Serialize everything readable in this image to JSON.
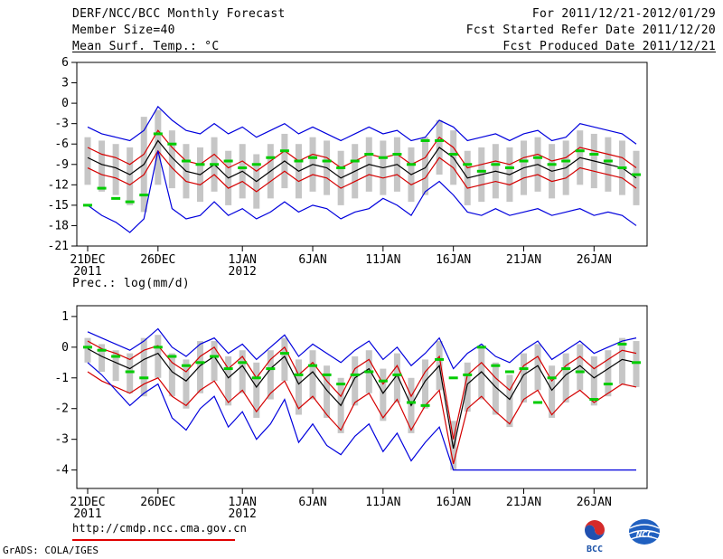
{
  "header": {
    "title": "DERF/NCC/BCC Monthly Forecast",
    "member_size": "Member Size=40",
    "forecast_range": "For 2011/12/21-2012/01/29",
    "refer_date": "Fcst Started Refer Date 2011/12/20",
    "produced_date": "Fcst Produced Date 2011/12/21"
  },
  "footer": {
    "url": "http://cmdp.ncc.cma.gov.cn",
    "grads_credit": "GrADS: COLA/IGES",
    "logo_bcc": "BCC",
    "logo_ncc": "NCC"
  },
  "colors": {
    "line_blue": "#0000dd",
    "line_red": "#d40000",
    "line_black": "#000000",
    "obs_green": "#00cc00",
    "spread_gray": "#c6c6c6",
    "underline_red": "#e00000"
  },
  "chart_data": [
    {
      "type": "line",
      "title": "Mean Surf. Temp.: °C",
      "ylim": [
        -21,
        6
      ],
      "yticks": [
        6,
        3,
        0,
        -3,
        -6,
        -9,
        -12,
        -15,
        -18,
        -21
      ],
      "n_days": 40,
      "bar_color": "#c6c6c6",
      "xticks": [
        {
          "day": 0,
          "label": "21DEC",
          "sub": "2011"
        },
        {
          "day": 5,
          "label": "26DEC",
          "sub": ""
        },
        {
          "day": 11,
          "label": "1JAN",
          "sub": "2012"
        },
        {
          "day": 16,
          "label": "6JAN",
          "sub": ""
        },
        {
          "day": 21,
          "label": "11JAN",
          "sub": ""
        },
        {
          "day": 26,
          "label": "16JAN",
          "sub": ""
        },
        {
          "day": 31,
          "label": "21JAN",
          "sub": ""
        },
        {
          "day": 36,
          "label": "26JAN",
          "sub": ""
        }
      ],
      "series": [
        {
          "name": "ensemble-max",
          "color": "#0000dd",
          "style": "solid",
          "values": [
            -3.5,
            -4.5,
            -5,
            -5.5,
            -4,
            -0.5,
            -2.5,
            -4,
            -4.5,
            -3,
            -4.5,
            -3.5,
            -5,
            -4,
            -3,
            -4.5,
            -3.5,
            -4.5,
            -5.5,
            -4.5,
            -3.5,
            -4.5,
            -4,
            -5.5,
            -5,
            -2.5,
            -3.5,
            -5.5,
            -5,
            -4.5,
            -5.5,
            -4.5,
            -4,
            -5.5,
            -5,
            -3,
            -3.5,
            -4,
            -4.5,
            -6
          ]
        },
        {
          "name": "red-upper",
          "color": "#d40000",
          "style": "solid",
          "values": [
            -6.5,
            -7.5,
            -8,
            -9,
            -7.5,
            -4,
            -6.5,
            -8.5,
            -9,
            -7.5,
            -9.5,
            -8.5,
            -10,
            -8.5,
            -7,
            -8.5,
            -7.5,
            -8,
            -9.5,
            -8.5,
            -7.5,
            -8,
            -7.5,
            -9,
            -8,
            -5,
            -6.5,
            -9.5,
            -9,
            -8.5,
            -9,
            -8,
            -7.5,
            -8.5,
            -8,
            -6.5,
            -7,
            -7.5,
            -8,
            -9.5
          ]
        },
        {
          "name": "ensemble-mean",
          "color": "#000000",
          "style": "solid",
          "values": [
            -8,
            -9,
            -9.5,
            -10.5,
            -9,
            -5.5,
            -8,
            -10,
            -10.5,
            -9,
            -11,
            -10,
            -11.5,
            -10,
            -8.5,
            -10,
            -9,
            -9.5,
            -11,
            -10,
            -9,
            -9.5,
            -9,
            -10.5,
            -9.5,
            -6.5,
            -8,
            -11,
            -10.5,
            -10,
            -10.5,
            -9.5,
            -9,
            -10,
            -9.5,
            -8,
            -8.5,
            -9,
            -9.5,
            -11
          ]
        },
        {
          "name": "red-lower",
          "color": "#d40000",
          "style": "solid",
          "values": [
            -9.5,
            -10.5,
            -11,
            -12,
            -10.5,
            -7,
            -9.5,
            -11.5,
            -12,
            -10.5,
            -12.5,
            -11.5,
            -13,
            -11.5,
            -10,
            -11.5,
            -10.5,
            -11,
            -12.5,
            -11.5,
            -10.5,
            -11,
            -10.5,
            -12,
            -11,
            -8,
            -9.5,
            -12.5,
            -12,
            -11.5,
            -12,
            -11,
            -10.5,
            -11.5,
            -11,
            -9.5,
            -10,
            -10.5,
            -11,
            -12.5
          ]
        },
        {
          "name": "ensemble-min",
          "color": "#0000dd",
          "style": "solid",
          "values": [
            -15,
            -16.5,
            -17.5,
            -19,
            -17,
            -7,
            -15.5,
            -17,
            -16.5,
            -14.5,
            -16.5,
            -15.5,
            -17,
            -16,
            -14.5,
            -16,
            -15,
            -15.5,
            -17,
            -16,
            -15.5,
            -14,
            -15,
            -16.5,
            -13,
            -11.5,
            -13.5,
            -16,
            -16.5,
            -15.5,
            -16.5,
            -16,
            -15.5,
            -16.5,
            -16,
            -15.5,
            -16.5,
            -16,
            -16.5,
            -18
          ]
        },
        {
          "name": "observation-dashes",
          "color": "#00cc00",
          "style": "dash",
          "values": [
            -15,
            -12.5,
            -14,
            -14.5,
            -13.5,
            -4.5,
            -6,
            -8.5,
            -9,
            -9,
            -8.5,
            -9.5,
            -9,
            -8,
            -7,
            -8.5,
            -8,
            -8.5,
            -9.5,
            -8.5,
            -7.5,
            -8,
            -7.5,
            -9,
            -5.5,
            -5.5,
            -7.5,
            -9,
            -10,
            -9,
            -9.5,
            -8.5,
            -8,
            -9,
            -8.5,
            -7,
            -7.5,
            -8.5,
            -9.5,
            -10.5
          ]
        }
      ],
      "spread_bars": [
        [
          -12,
          -5
        ],
        [
          -13,
          -5.5
        ],
        [
          -13.5,
          -6
        ],
        [
          -15,
          -6.5
        ],
        [
          -16,
          -2
        ],
        [
          -12,
          -1
        ],
        [
          -12.5,
          -4
        ],
        [
          -14,
          -6
        ],
        [
          -14.5,
          -6.5
        ],
        [
          -13,
          -5
        ],
        [
          -15,
          -7
        ],
        [
          -14,
          -6
        ],
        [
          -15.5,
          -7.5
        ],
        [
          -14,
          -6
        ],
        [
          -12.5,
          -4.5
        ],
        [
          -14,
          -6
        ],
        [
          -13,
          -5
        ],
        [
          -13.5,
          -5.5
        ],
        [
          -15,
          -7
        ],
        [
          -14,
          -6
        ],
        [
          -13,
          -5
        ],
        [
          -13.5,
          -5.5
        ],
        [
          -13,
          -5
        ],
        [
          -14.5,
          -6.5
        ],
        [
          -13.5,
          -5
        ],
        [
          -10.5,
          -2.5
        ],
        [
          -12,
          -4
        ],
        [
          -15,
          -7
        ],
        [
          -14.5,
          -6.5
        ],
        [
          -14,
          -6
        ],
        [
          -14.5,
          -6.5
        ],
        [
          -13.5,
          -5.5
        ],
        [
          -13,
          -5
        ],
        [
          -14,
          -6
        ],
        [
          -13.5,
          -5.5
        ],
        [
          -12,
          -4
        ],
        [
          -12.5,
          -4.5
        ],
        [
          -13,
          -5
        ],
        [
          -13.5,
          -5.5
        ],
        [
          -15,
          -7
        ]
      ]
    },
    {
      "type": "line",
      "title": "Prec.: log(mm/d)",
      "ylim": [
        -4.6,
        1.35
      ],
      "yticks": [
        1,
        0,
        -1,
        -2,
        -3,
        -4
      ],
      "n_days": 40,
      "bar_color": "#c6c6c6",
      "xticks": [
        {
          "day": 0,
          "label": "21DEC",
          "sub": "2011"
        },
        {
          "day": 5,
          "label": "26DEC",
          "sub": ""
        },
        {
          "day": 11,
          "label": "1JAN",
          "sub": "2012"
        },
        {
          "day": 16,
          "label": "6JAN",
          "sub": ""
        },
        {
          "day": 21,
          "label": "11JAN",
          "sub": ""
        },
        {
          "day": 26,
          "label": "16JAN",
          "sub": ""
        },
        {
          "day": 31,
          "label": "21JAN",
          "sub": ""
        },
        {
          "day": 36,
          "label": "26JAN",
          "sub": ""
        }
      ],
      "series": [
        {
          "name": "ensemble-max",
          "color": "#0000dd",
          "style": "solid",
          "values": [
            0.5,
            0.3,
            0.1,
            -0.1,
            0.2,
            0.6,
            0.0,
            -0.3,
            0.1,
            0.3,
            -0.2,
            0.1,
            -0.4,
            0.0,
            0.4,
            -0.3,
            0.1,
            -0.2,
            -0.5,
            -0.1,
            0.2,
            -0.4,
            0.0,
            -0.6,
            -0.2,
            0.3,
            -0.7,
            -0.2,
            0.1,
            -0.3,
            -0.5,
            -0.1,
            0.2,
            -0.4,
            -0.1,
            0.2,
            -0.2,
            0.0,
            0.2,
            0.3
          ]
        },
        {
          "name": "red-upper",
          "color": "#d40000",
          "style": "solid",
          "values": [
            0.2,
            -0.05,
            -0.2,
            -0.4,
            -0.1,
            0.05,
            -0.5,
            -0.8,
            -0.3,
            0.0,
            -0.7,
            -0.3,
            -1.0,
            -0.4,
            0.0,
            -0.9,
            -0.5,
            -1.1,
            -1.6,
            -0.7,
            -0.4,
            -1.2,
            -0.6,
            -1.6,
            -0.8,
            -0.3,
            -3.0,
            -0.9,
            -0.5,
            -1.0,
            -1.4,
            -0.6,
            -0.3,
            -1.1,
            -0.6,
            -0.3,
            -0.7,
            -0.4,
            -0.1,
            -0.2
          ]
        },
        {
          "name": "ensemble-mean",
          "color": "#000000",
          "style": "solid",
          "values": [
            -0.05,
            -0.3,
            -0.5,
            -0.7,
            -0.4,
            -0.2,
            -0.8,
            -1.1,
            -0.6,
            -0.3,
            -1.0,
            -0.6,
            -1.3,
            -0.7,
            -0.3,
            -1.2,
            -0.8,
            -1.4,
            -1.9,
            -1.0,
            -0.7,
            -1.5,
            -0.9,
            -1.9,
            -1.1,
            -0.6,
            -3.3,
            -1.2,
            -0.8,
            -1.3,
            -1.7,
            -0.9,
            -0.6,
            -1.4,
            -0.9,
            -0.6,
            -1.0,
            -0.7,
            -0.4,
            -0.5
          ]
        },
        {
          "name": "red-lower",
          "color": "#d40000",
          "style": "solid",
          "values": [
            -0.8,
            -1.1,
            -1.3,
            -1.5,
            -1.2,
            -1.0,
            -1.6,
            -1.9,
            -1.4,
            -1.1,
            -1.8,
            -1.4,
            -2.1,
            -1.5,
            -1.1,
            -2.0,
            -1.6,
            -2.2,
            -2.7,
            -1.8,
            -1.5,
            -2.3,
            -1.7,
            -2.7,
            -1.9,
            -1.4,
            -3.8,
            -2.0,
            -1.6,
            -2.1,
            -2.5,
            -1.7,
            -1.4,
            -2.2,
            -1.7,
            -1.4,
            -1.8,
            -1.5,
            -1.2,
            -1.3
          ]
        },
        {
          "name": "ensemble-min",
          "color": "#0000dd",
          "style": "solid",
          "values": [
            -0.5,
            -0.9,
            -1.4,
            -1.9,
            -1.5,
            -1.2,
            -2.3,
            -2.7,
            -2.0,
            -1.6,
            -2.6,
            -2.1,
            -3.0,
            -2.5,
            -1.7,
            -3.1,
            -2.5,
            -3.2,
            -3.5,
            -2.9,
            -2.5,
            -3.4,
            -2.8,
            -3.7,
            -3.1,
            -2.6,
            -4.0,
            -4.0,
            -4.0,
            -4.0,
            -4.0,
            -4.0,
            -4.0,
            -4.0,
            -4.0,
            -4.0,
            -4.0,
            -4.0,
            -4.0,
            -4.0
          ]
        },
        {
          "name": "observation-dashes",
          "color": "#00cc00",
          "style": "dash",
          "values": [
            0.0,
            -0.1,
            -0.3,
            -0.8,
            -1.0,
            0.0,
            -0.3,
            -0.6,
            -0.5,
            -0.3,
            -0.7,
            -0.5,
            -1.0,
            -0.7,
            -0.2,
            -0.9,
            -0.6,
            -0.9,
            -1.2,
            -0.9,
            -0.8,
            -1.1,
            -0.9,
            -1.8,
            -1.9,
            -0.4,
            -1.0,
            -0.9,
            0.0,
            -0.6,
            -0.8,
            -0.7,
            -1.8,
            -1.0,
            -0.7,
            -0.8,
            -1.7,
            -1.2,
            0.1,
            -0.5
          ]
        }
      ],
      "spread_bars": [
        [
          -0.5,
          0.3
        ],
        [
          -0.8,
          0.1
        ],
        [
          -1.1,
          -0.1
        ],
        [
          -1.5,
          -0.2
        ],
        [
          -1.6,
          0.3
        ],
        [
          -1.0,
          0.4
        ],
        [
          -1.6,
          -0.2
        ],
        [
          -2.0,
          -0.4
        ],
        [
          -1.5,
          0.2
        ],
        [
          -1.1,
          0.2
        ],
        [
          -1.9,
          -0.3
        ],
        [
          -1.5,
          -0.1
        ],
        [
          -2.3,
          -0.5
        ],
        [
          -1.7,
          -0.1
        ],
        [
          -1.1,
          0.3
        ],
        [
          -2.2,
          -0.4
        ],
        [
          -1.7,
          -0.1
        ],
        [
          -2.3,
          -0.6
        ],
        [
          -2.8,
          -1.0
        ],
        [
          -1.9,
          -0.3
        ],
        [
          -1.5,
          -0.1
        ],
        [
          -2.4,
          -0.7
        ],
        [
          -1.8,
          -0.2
        ],
        [
          -2.8,
          -1.0
        ],
        [
          -2.0,
          -0.4
        ],
        [
          -1.4,
          0.2
        ],
        [
          -4.0,
          -2.4
        ],
        [
          -2.1,
          -0.5
        ],
        [
          -1.7,
          0.0
        ],
        [
          -2.2,
          -0.5
        ],
        [
          -2.6,
          -0.9
        ],
        [
          -1.8,
          -0.2
        ],
        [
          -1.4,
          0.1
        ],
        [
          -2.3,
          -0.6
        ],
        [
          -1.8,
          -0.2
        ],
        [
          -1.4,
          0.1
        ],
        [
          -1.9,
          -0.3
        ],
        [
          -1.6,
          -0.1
        ],
        [
          -1.2,
          0.3
        ],
        [
          -1.3,
          0.2
        ]
      ]
    }
  ]
}
